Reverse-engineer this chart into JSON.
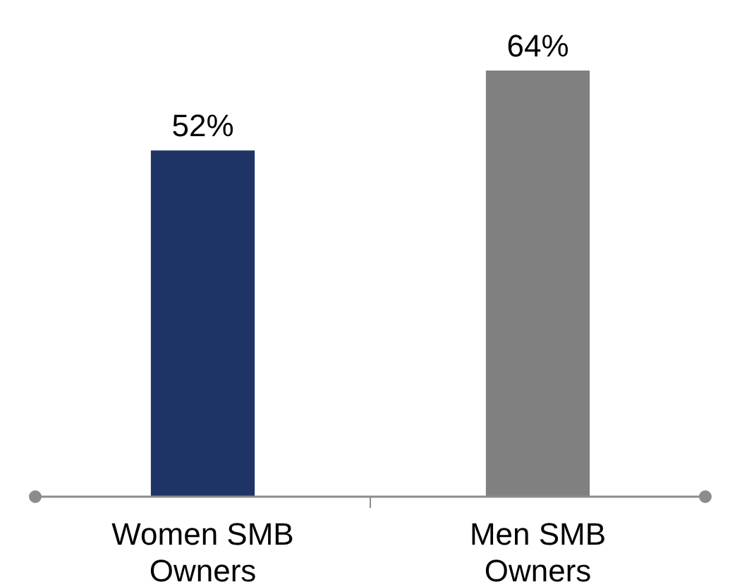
{
  "chart_data": {
    "type": "bar",
    "categories": [
      "Women SMB Owners",
      "Men SMB Owners"
    ],
    "values": [
      52,
      64
    ],
    "colors": [
      "#1f3466",
      "#808080"
    ],
    "value_labels": [
      "52%",
      "64%"
    ]
  }
}
